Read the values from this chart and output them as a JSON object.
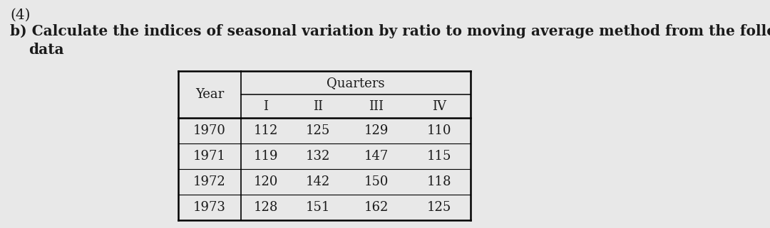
{
  "title_number": "(4)",
  "question_line1": "b) Calculate the indices of seasonal variation by ratio to moving average method from the following",
  "question_line2": "data",
  "header_col": "Year",
  "quarters_label": "Quarters",
  "sub_headers": [
    "I",
    "II",
    "III",
    "IV"
  ],
  "rows": [
    [
      "1970",
      "112",
      "125",
      "129",
      "110"
    ],
    [
      "1971",
      "119",
      "132",
      "147",
      "115"
    ],
    [
      "1972",
      "120",
      "142",
      "150",
      "118"
    ],
    [
      "1973",
      "128",
      "151",
      "162",
      "125"
    ]
  ],
  "bg_color": "#e8e8e8",
  "text_color": "#1a1a1a",
  "question_fontsize": 14.5,
  "table_fontsize": 13.0
}
